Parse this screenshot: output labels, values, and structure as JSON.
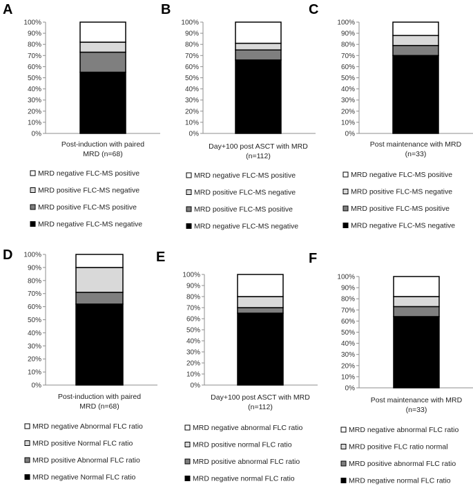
{
  "colors": {
    "white": "#ffffff",
    "light_gray": "#d9d9d9",
    "dark_gray": "#7f7f7f",
    "black": "#000000"
  },
  "chart_data": [
    {
      "panel": "A",
      "type": "bar",
      "stacked": true,
      "xlabel_lines": [
        "Post-induction with paired",
        "MRD (n=68)"
      ],
      "ylim": [
        0,
        100
      ],
      "yticks": [
        "0%",
        "10%",
        "20%",
        "30%",
        "40%",
        "50%",
        "60%",
        "70%",
        "80%",
        "90%",
        "100%"
      ],
      "series": [
        {
          "name": "MRD negative FLC-MS negative",
          "color": "black",
          "value": 55
        },
        {
          "name": "MRD positive FLC-MS positive",
          "color": "dark_gray",
          "value": 18
        },
        {
          "name": "MRD positive FLC-MS negative",
          "color": "light_gray",
          "value": 9
        },
        {
          "name": "MRD negative FLC-MS positive",
          "color": "white",
          "value": 18
        }
      ],
      "legend": [
        "MRD negative FLC-MS positive",
        "MRD positive FLC-MS negative",
        "MRD positive FLC-MS positive",
        "MRD negative FLC-MS negative"
      ]
    },
    {
      "panel": "B",
      "type": "bar",
      "stacked": true,
      "xlabel_lines": [
        "Day+100 post ASCT with MRD",
        "(n=112)"
      ],
      "ylim": [
        0,
        100
      ],
      "yticks": [
        "0%",
        "10%",
        "20%",
        "30%",
        "40%",
        "50%",
        "60%",
        "70%",
        "80%",
        "90%",
        "100%"
      ],
      "series": [
        {
          "name": "MRD negative FLC-MS negative",
          "color": "black",
          "value": 66
        },
        {
          "name": "MRD positive FLC-MS positive",
          "color": "dark_gray",
          "value": 9
        },
        {
          "name": "MRD positive FLC-MS negative",
          "color": "light_gray",
          "value": 6
        },
        {
          "name": "MRD negative FLC-MS positive",
          "color": "white",
          "value": 19
        }
      ],
      "legend": [
        "MRD negative FLC-MS positive",
        "MRD positive FLC-MS negative",
        "MRD positive FLC-MS positive",
        "MRD negative FLC-MS negative"
      ]
    },
    {
      "panel": "C",
      "type": "bar",
      "stacked": true,
      "xlabel_lines": [
        "Post maintenance with MRD",
        "(n=33)"
      ],
      "ylim": [
        0,
        100
      ],
      "yticks": [
        "0%",
        "10%",
        "20%",
        "30%",
        "40%",
        "50%",
        "60%",
        "70%",
        "80%",
        "90%",
        "100%"
      ],
      "series": [
        {
          "name": "MRD negative FLC-MS negative",
          "color": "black",
          "value": 70
        },
        {
          "name": "MRD positive FLC-MS positive",
          "color": "dark_gray",
          "value": 9
        },
        {
          "name": "MRD positive FLC-MS negative",
          "color": "light_gray",
          "value": 9
        },
        {
          "name": "MRD negative FLC-MS positive",
          "color": "white",
          "value": 12
        }
      ],
      "legend": [
        "MRD negative FLC-MS positive",
        "MRD positive FLC-MS negative",
        "MRD positive FLC-MS positive",
        "MRD negative FLC-MS negative"
      ]
    },
    {
      "panel": "D",
      "type": "bar",
      "stacked": true,
      "xlabel_lines": [
        "Post-induction with paired",
        "MRD (n=68)"
      ],
      "ylim": [
        0,
        100
      ],
      "yticks": [
        "0%",
        "10%",
        "20%",
        "30%",
        "40%",
        "50%",
        "60%",
        "70%",
        "80%",
        "90%",
        "100%"
      ],
      "series": [
        {
          "name": "MRD negative Normal FLC ratio",
          "color": "black",
          "value": 62
        },
        {
          "name": "MRD positive Abnormal FLC ratio",
          "color": "dark_gray",
          "value": 9
        },
        {
          "name": "MRD positive Normal FLC ratio",
          "color": "light_gray",
          "value": 19
        },
        {
          "name": "MRD negative Abnormal FLC ratio",
          "color": "white",
          "value": 10
        }
      ],
      "legend": [
        "MRD negative Abnormal FLC ratio",
        "MRD positive Normal FLC ratio",
        "MRD positive Abnormal FLC ratio",
        "MRD negative Normal FLC ratio"
      ]
    },
    {
      "panel": "E",
      "type": "bar",
      "stacked": true,
      "xlabel_lines": [
        "Day+100 post ASCT with MRD",
        "(n=112)"
      ],
      "ylim": [
        0,
        100
      ],
      "yticks": [
        "0%",
        "10%",
        "20%",
        "30%",
        "40%",
        "50%",
        "60%",
        "70%",
        "80%",
        "90%",
        "100%"
      ],
      "series": [
        {
          "name": "MRD negative normal FLC ratio",
          "color": "black",
          "value": 65
        },
        {
          "name": "MRD positive abnormal FLC ratio",
          "color": "dark_gray",
          "value": 5
        },
        {
          "name": "MRD positive normal FLC ratio",
          "color": "light_gray",
          "value": 10
        },
        {
          "name": "MRD negative abnormal FLC ratio",
          "color": "white",
          "value": 20
        }
      ],
      "legend": [
        "MRD negative abnormal FLC ratio",
        "MRD positive normal FLC ratio",
        "MRD positive abnormal FLC ratio",
        "MRD negative normal FLC ratio"
      ]
    },
    {
      "panel": "F",
      "type": "bar",
      "stacked": true,
      "xlabel_lines": [
        "Post maintenance with MRD",
        "(n=33)"
      ],
      "ylim": [
        0,
        100
      ],
      "yticks": [
        "0%",
        "10%",
        "20%",
        "30%",
        "40%",
        "50%",
        "60%",
        "70%",
        "80%",
        "90%",
        "100%"
      ],
      "series": [
        {
          "name": "MRD negative normal FLC ratio",
          "color": "black",
          "value": 64
        },
        {
          "name": "MRD positive abnormal FLC ratio",
          "color": "dark_gray",
          "value": 9
        },
        {
          "name": "MRD positive FLC ratio normal",
          "color": "light_gray",
          "value": 9
        },
        {
          "name": "MRD negative abnormal FLC ratio",
          "color": "white",
          "value": 18
        }
      ],
      "legend": [
        "MRD negative abnormal FLC ratio",
        "MRD positive FLC ratio normal",
        "MRD positive abnormal FLC ratio",
        "MRD negative normal FLC ratio"
      ]
    }
  ]
}
